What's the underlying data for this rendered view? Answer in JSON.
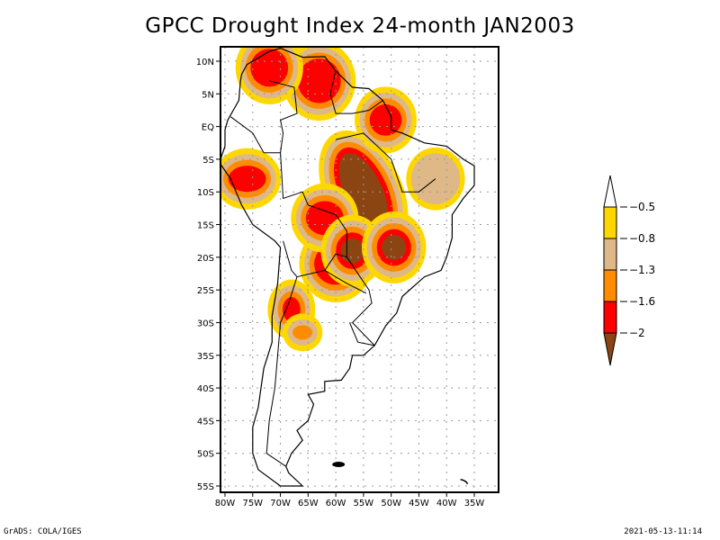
{
  "title": "GPCC Drought Index 24-month JAN2003",
  "footer": {
    "left": "GrADS: COLA/IGES",
    "right": "2021-05-13-11:14"
  },
  "map": {
    "region": "South America",
    "variable": "GPCC Drought Index",
    "accumulation": "24-month",
    "period": "JAN2003",
    "lon_range": [
      -81,
      -32
    ],
    "lat_range": [
      -56,
      11
    ],
    "lat_ticks": [
      {
        "value": 10,
        "label": "10N"
      },
      {
        "value": 5,
        "label": "5N"
      },
      {
        "value": 0,
        "label": "EQ"
      },
      {
        "value": -5,
        "label": "5S"
      },
      {
        "value": -10,
        "label": "10S"
      },
      {
        "value": -15,
        "label": "15S"
      },
      {
        "value": -20,
        "label": "20S"
      },
      {
        "value": -25,
        "label": "25S"
      },
      {
        "value": -30,
        "label": "30S"
      },
      {
        "value": -35,
        "label": "35S"
      },
      {
        "value": -40,
        "label": "40S"
      },
      {
        "value": -45,
        "label": "45S"
      },
      {
        "value": -50,
        "label": "50S"
      },
      {
        "value": -55,
        "label": "55S"
      }
    ],
    "lon_ticks": [
      {
        "value": -80,
        "label": "80W"
      },
      {
        "value": -75,
        "label": "75W"
      },
      {
        "value": -70,
        "label": "70W"
      },
      {
        "value": -65,
        "label": "65W"
      },
      {
        "value": -60,
        "label": "60W"
      },
      {
        "value": -55,
        "label": "55W"
      },
      {
        "value": -50,
        "label": "50W"
      },
      {
        "value": -45,
        "label": "45W"
      },
      {
        "value": -40,
        "label": "40W"
      },
      {
        "value": -35,
        "label": "35W"
      }
    ],
    "gridlines": "dotted"
  },
  "legend": {
    "orientation": "vertical",
    "placement": "right",
    "levels": [
      {
        "label": "-0.5",
        "value": -0.5
      },
      {
        "label": "-0.8",
        "value": -0.8
      },
      {
        "label": "-1.3",
        "value": -1.3
      },
      {
        "label": "-1.6",
        "value": -1.6
      },
      {
        "label": "-2",
        "value": -2
      }
    ],
    "bins": [
      {
        "range": "> -0.5",
        "color": "#ffffff"
      },
      {
        "range": "-0.8 to -0.5",
        "color": "#ffd700"
      },
      {
        "range": "-1.3 to -0.8",
        "color": "#deb887"
      },
      {
        "range": "-1.6 to -1.3",
        "color": "#ff8c00"
      },
      {
        "range": "-2 to -1.6",
        "color": "#ff0000"
      },
      {
        "range": "< -2",
        "color": "#8b4513"
      }
    ]
  },
  "drought_areas": [
    {
      "name": "central-brazil-core",
      "lon": -55,
      "lat": -10,
      "rx": 3.0,
      "ry": 6.0,
      "rot": -25,
      "level": 5
    },
    {
      "name": "northern-venezuela",
      "lon": -63,
      "lat": 7,
      "rx": 3.5,
      "ry": 3.0,
      "rot": 0,
      "level": 4
    },
    {
      "name": "colombia-north",
      "lon": -72,
      "lat": 9,
      "rx": 3.0,
      "ry": 2.5,
      "rot": 0,
      "level": 4
    },
    {
      "name": "paraguay",
      "lon": -60,
      "lat": -21,
      "rx": 3.5,
      "ry": 2.8,
      "rot": 0,
      "level": 4
    },
    {
      "name": "bolivia-east",
      "lon": -62,
      "lat": -14,
      "rx": 3.0,
      "ry": 2.2,
      "rot": 0,
      "level": 4
    },
    {
      "name": "peru-north",
      "lon": -76,
      "lat": -8,
      "rx": 3.0,
      "ry": 1.6,
      "rot": 0,
      "level": 4
    },
    {
      "name": "mato-grosso-sul",
      "lon": -57,
      "lat": -19,
      "rx": 1.7,
      "ry": 1.5,
      "rot": 0,
      "level": 5
    },
    {
      "name": "goias-east",
      "lon": -49.5,
      "lat": -18.5,
      "rx": 1.8,
      "ry": 1.5,
      "rot": 0,
      "level": 5
    },
    {
      "name": "amapa",
      "lon": -51,
      "lat": 1,
      "rx": 2.5,
      "ry": 2.0,
      "rot": 0,
      "level": 4
    },
    {
      "name": "northeast-brazil",
      "lon": -42,
      "lat": -8,
      "rx": 4.0,
      "ry": 3.5,
      "rot": 0,
      "level": 2
    },
    {
      "name": "argentina-northwest",
      "lon": -68,
      "lat": -28,
      "rx": 1.2,
      "ry": 1.5,
      "rot": 0,
      "level": 4
    },
    {
      "name": "argentina-central",
      "lon": -66,
      "lat": -31.5,
      "rx": 1.4,
      "ry": 0.7,
      "rot": 0,
      "level": 3
    }
  ]
}
